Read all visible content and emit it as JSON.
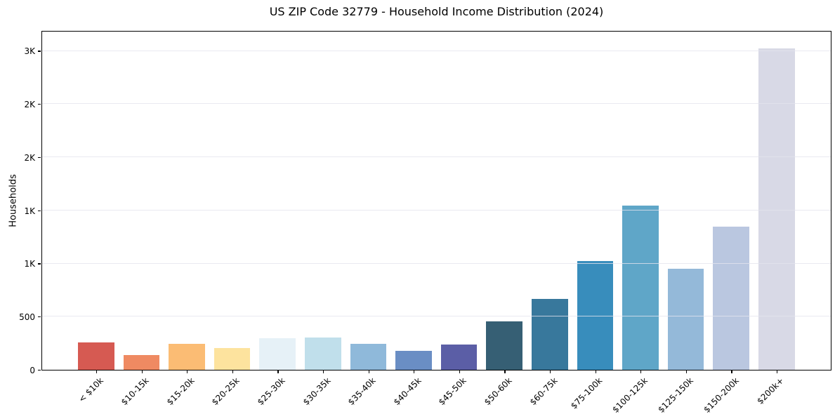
{
  "page": {
    "background": "#ffffff"
  },
  "chart_data": {
    "type": "bar",
    "title": "US ZIP Code 32779 - Household Income Distribution (2024)",
    "xlabel": "",
    "ylabel": "Households",
    "categories": [
      "< $10k",
      "$10-15k",
      "$15-20k",
      "$20-25k",
      "$25-30k",
      "$30-35k",
      "$35-40k",
      "$40-45k",
      "$45-50k",
      "$50-60k",
      "$60-75k",
      "$75-100k",
      "$100-125k",
      "$125-150k",
      "$150-200k",
      "$200k+"
    ],
    "values": [
      255,
      136,
      245,
      205,
      298,
      301,
      242,
      176,
      237,
      455,
      670,
      1025,
      1545,
      950,
      1348,
      3025
    ],
    "bar_colors": [
      "#d65a52",
      "#ef8a62",
      "#fbbc74",
      "#fde39e",
      "#e6f1f7",
      "#c0dfeb",
      "#8fb9da",
      "#6a8ec4",
      "#5b5ea6",
      "#365f74",
      "#38789c",
      "#388dbc",
      "#5fa6c8",
      "#94b9d9",
      "#bac7e0",
      "#d8d9e6"
    ],
    "yticks": [
      {
        "value": 0,
        "label": "0"
      },
      {
        "value": 500,
        "label": "500"
      },
      {
        "value": 1000,
        "label": "1K"
      },
      {
        "value": 1500,
        "label": "1K"
      },
      {
        "value": 2000,
        "label": "2K"
      },
      {
        "value": 2500,
        "label": "2K"
      },
      {
        "value": 3000,
        "label": "3K"
      }
    ],
    "ylim": [
      0,
      3180
    ],
    "grid": "horizontal",
    "gridline_color": "#e4e4ee",
    "axis_color": "#000000",
    "legend": "none"
  }
}
